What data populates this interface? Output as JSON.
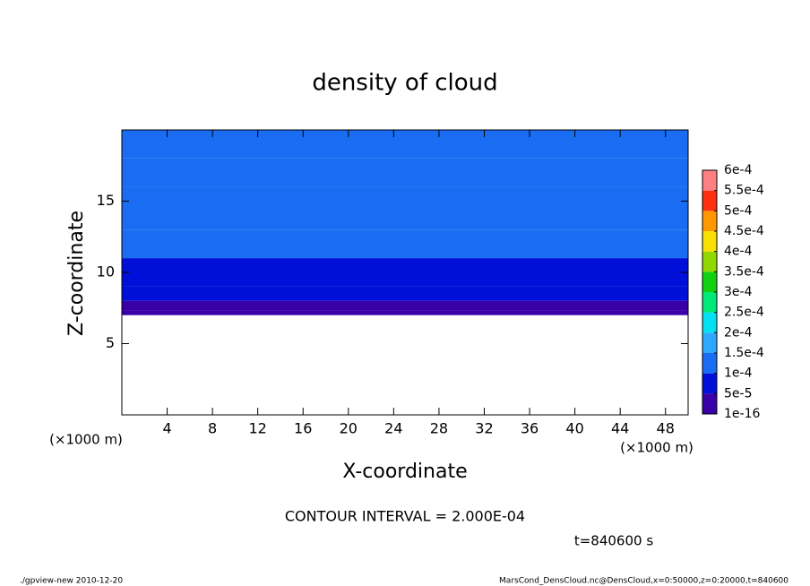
{
  "chart_data": {
    "type": "contour",
    "title": "density of cloud",
    "x_label": "X-coordinate",
    "y_label": "Z-coordinate",
    "x_unit": "(×1000 m)",
    "y_unit": "(×1000 m)",
    "xlim": [
      0,
      50
    ],
    "ylim": [
      0,
      20
    ],
    "xticks": [
      4,
      8,
      12,
      16,
      20,
      24,
      28,
      32,
      36,
      40,
      44,
      48
    ],
    "yticks": [
      5,
      10,
      15
    ],
    "layers": {
      "z_edges": [
        7,
        7.3,
        8,
        9,
        11,
        13,
        16,
        18,
        20
      ],
      "values": [
        2e-05,
        4e-05,
        7e-05,
        9e-05,
        0.00012,
        0.00014,
        0.00013,
        0.00012
      ]
    },
    "colorbar": {
      "levels": [
        1e-16,
        {
          "value": 5e-05,
          "label": "5e-5"
        },
        {
          "value": 0.0001,
          "label": "1e-4"
        },
        {
          "value": 0.00015,
          "label": "1.5e-4"
        },
        {
          "value": 0.0002,
          "label": "2e-4"
        },
        {
          "value": 0.00025,
          "label": "2.5e-4"
        },
        {
          "value": 0.0003,
          "label": "3e-4"
        },
        {
          "value": 0.00035,
          "label": "3.5e-4"
        },
        {
          "value": 0.0004,
          "label": "4e-4"
        },
        {
          "value": 0.00045,
          "label": "4.5e-4"
        },
        {
          "value": 0.0005,
          "label": "5e-4"
        },
        {
          "value": 0.00055,
          "label": "5.5e-4"
        },
        {
          "value": 0.0006,
          "label": "6e-4"
        }
      ],
      "colors": [
        "#3a00a8",
        "#0010d8",
        "#1a6cf2",
        "#2ea8ff",
        "#00e0f0",
        "#00e878",
        "#10d010",
        "#90d800",
        "#f8e000",
        "#ff9800",
        "#ff3010",
        "#ff8080"
      ]
    },
    "contour_interval": "CONTOUR INTERVAL = 2.000E-04",
    "time_label": "t=840600 s",
    "footer_left": "./gpview-new   2010-12-20",
    "footer_right": "MarsCond_DensCloud.nc@DensCloud,x=0:50000,z=0:20000,t=840600"
  }
}
